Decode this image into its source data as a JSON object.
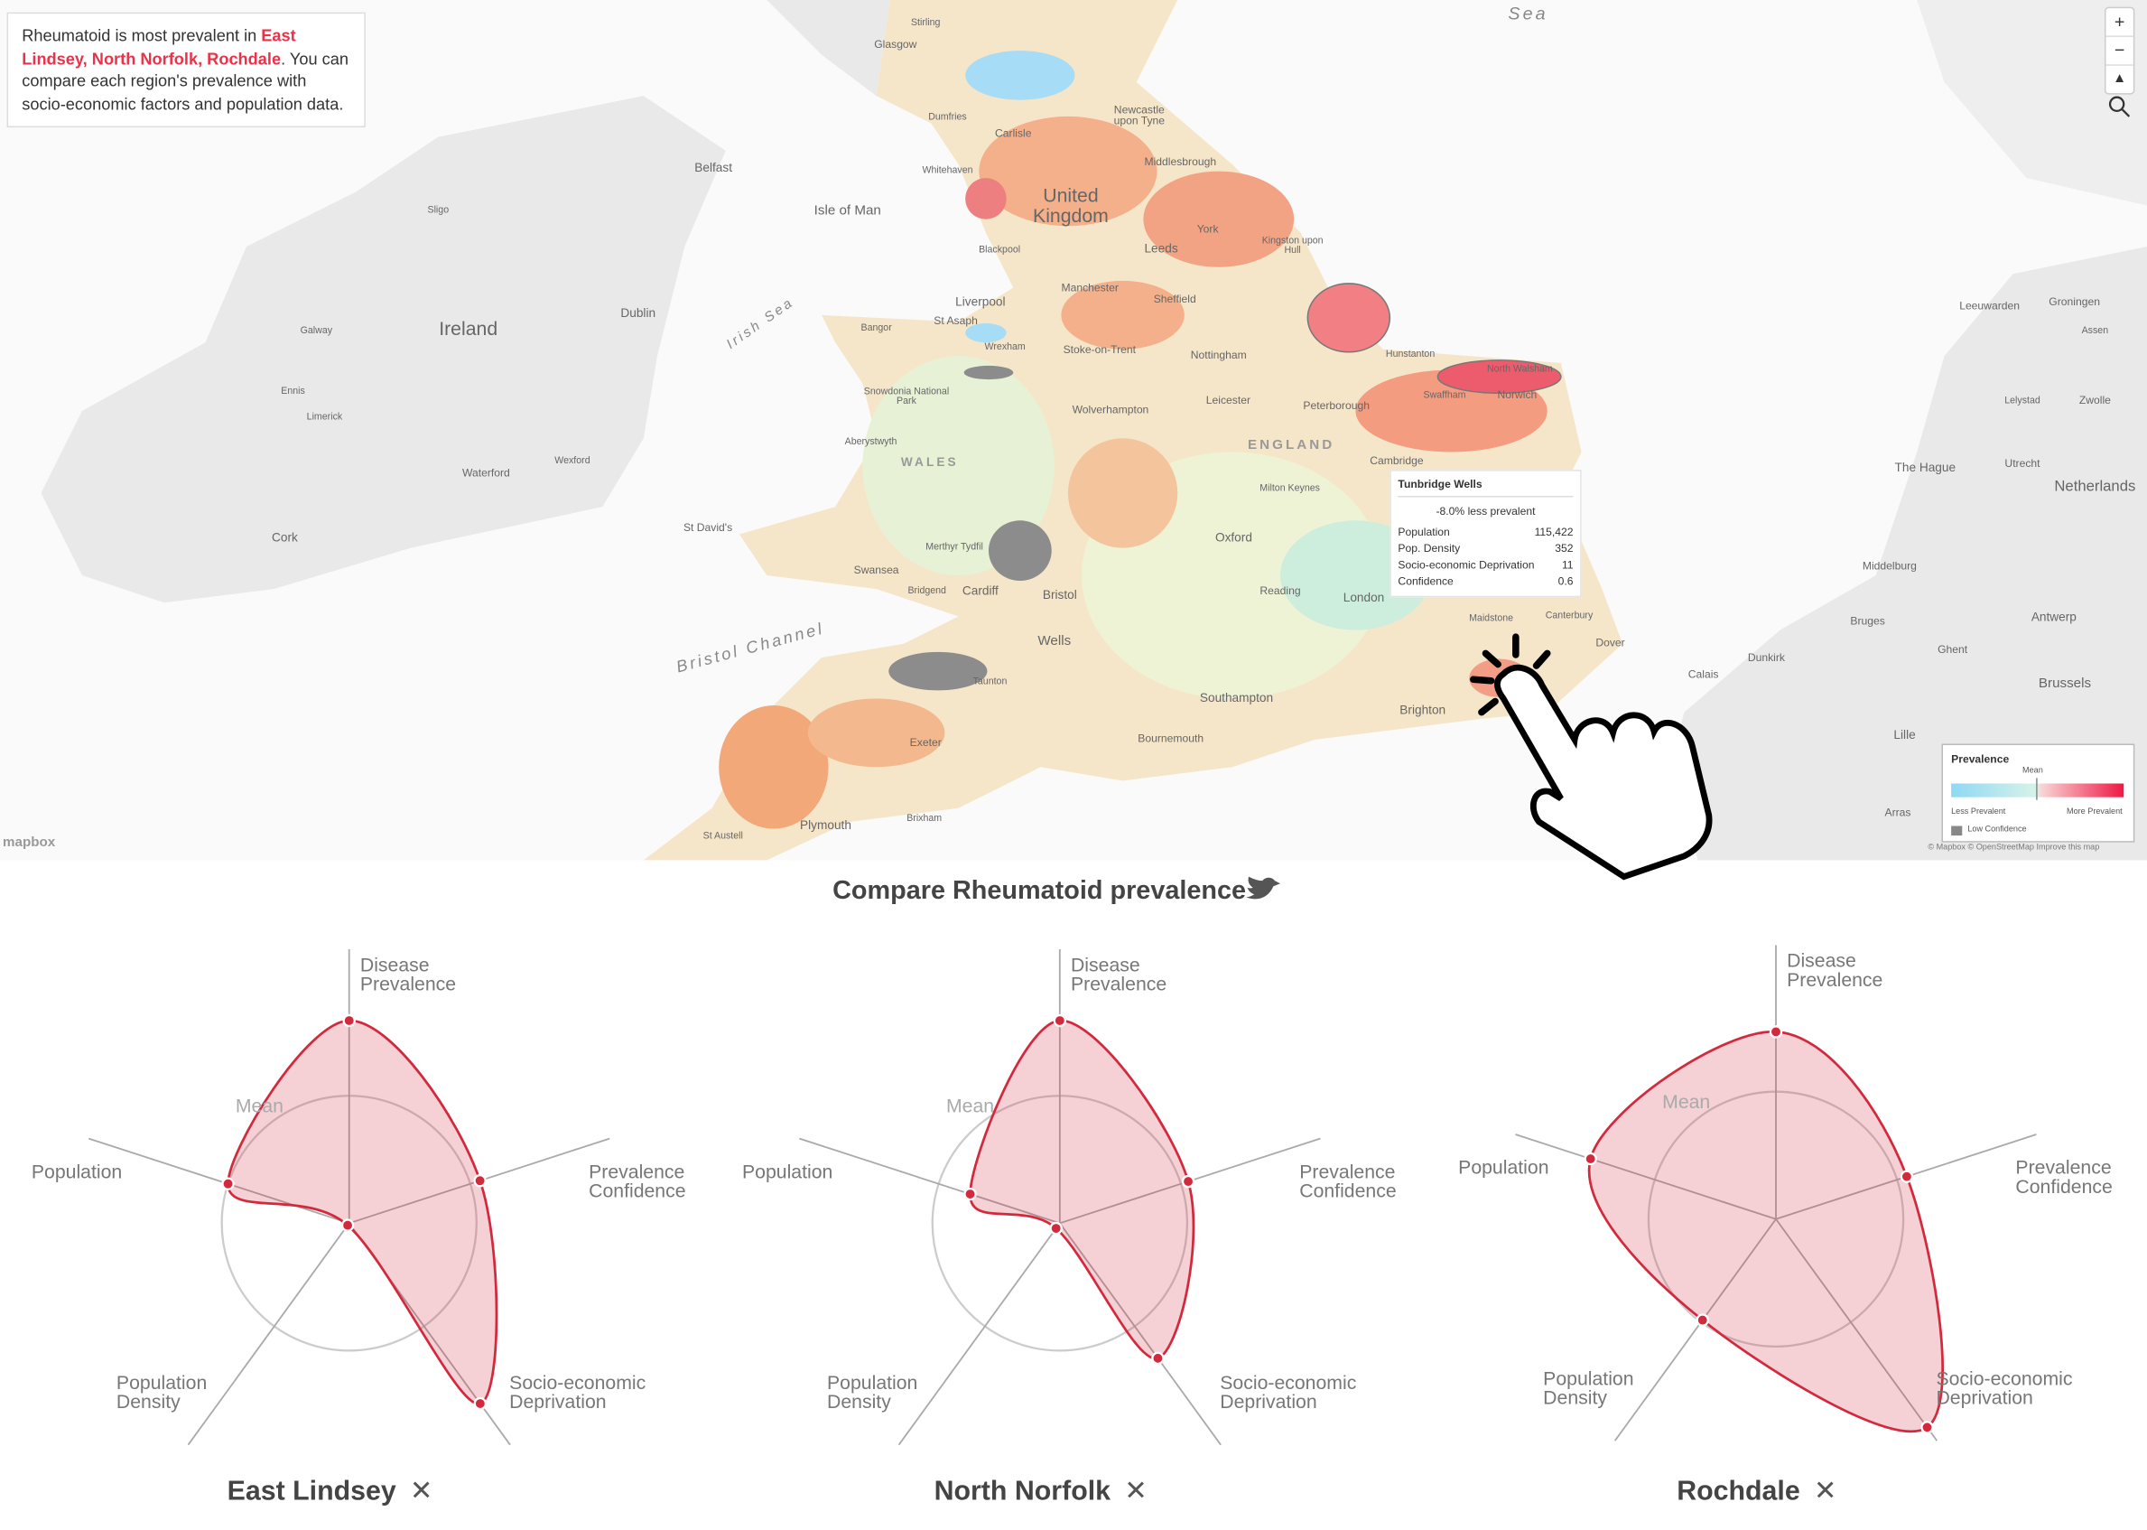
{
  "info": {
    "text_before": "Rheumatoid is most prevalent in ",
    "highlight": "East Lindsey, North Norfolk, Rochdale",
    "text_after": ". You can compare each region's prevalence with socio-economic factors and population data."
  },
  "map": {
    "labels": [
      "Sea",
      "Stirling",
      "Glasgow",
      "Dumfries",
      "Carlisle",
      "Newcastle upon Tyne",
      "Middlesbrough",
      "Whitehaven",
      "United Kingdom",
      "Isle of Man",
      "York",
      "Blackpool",
      "Leeds",
      "Kingston upon Hull",
      "Manchester",
      "Sheffield",
      "Liverpool",
      "St Asaph",
      "Bangor",
      "Wrexham",
      "Stoke-on-Trent",
      "Nottingham",
      "Hunstanton",
      "North Walsham",
      "Swaffham",
      "Norwich",
      "Snowdonia National Park",
      "Leicester",
      "Peterborough",
      "Wolverhampton",
      "Aberystwyth",
      "ENGLAND",
      "WALES",
      "Cambridge",
      "Milton Keynes",
      "St David's",
      "Oxford",
      "Merthyr Tydfil",
      "Swansea",
      "Reading",
      "Bridgend",
      "Cardiff",
      "Bristol",
      "London",
      "Maidstone",
      "Canterbury",
      "Dover",
      "Wells",
      "Taunton",
      "Southampton",
      "Brighton",
      "Bournemouth",
      "Exeter",
      "Brixham",
      "Plymouth",
      "St Austell",
      "Irish Sea",
      "Bristol Channel",
      "Ireland",
      "Dublin",
      "Belfast",
      "Galway",
      "Limerick",
      "Cork",
      "Waterford",
      "Wexford",
      "Ennis",
      "Sligo",
      "Netherlands",
      "The Hague",
      "Utrecht",
      "Groningen",
      "Leeuwarden",
      "Zwolle",
      "Lelystad",
      "Assen",
      "Middelburg",
      "Bruges",
      "Ghent",
      "Antwerp",
      "Brussels",
      "Calais",
      "Dunkirk",
      "Lille",
      "Arras"
    ],
    "logo": "mapbox",
    "attribution": "© Mapbox © OpenStreetMap Improve this map",
    "zoom_in": "+",
    "zoom_out": "−"
  },
  "tooltip": {
    "title": "Tunbridge Wells",
    "subtitle": "-8.0% less prevalent",
    "rows": [
      [
        "Population",
        "115,422"
      ],
      [
        "Pop. Density",
        "352"
      ],
      [
        "Socio-economic Deprivation",
        "11"
      ],
      [
        "Confidence",
        "0.6"
      ]
    ]
  },
  "legend": {
    "title": "Prevalence",
    "mean": "Mean",
    "low": "Less Prevalent",
    "high": "More Prevalent",
    "low_confidence": "Low Confidence"
  },
  "compare": {
    "heading": "Compare Rheumatoid prevalence"
  },
  "chart_data": [
    {
      "type": "radar",
      "title": "East Lindsey",
      "categories": [
        "Disease Prevalence",
        "Prevalence Confidence",
        "Socio-economic Deprivation",
        "Population Density",
        "Population"
      ],
      "values": [
        1.59,
        1.08,
        1.75,
        0.02,
        1.0
      ],
      "reference": {
        "label": "Mean",
        "value": 1
      },
      "rlim": [
        0,
        2.15
      ],
      "color": "#d3293d"
    },
    {
      "type": "radar",
      "title": "North Norfolk",
      "categories": [
        "Disease Prevalence",
        "Prevalence Confidence",
        "Socio-economic Deprivation",
        "Population Density",
        "Population"
      ],
      "values": [
        1.59,
        1.06,
        1.31,
        0.05,
        0.74
      ],
      "reference": {
        "label": "Mean",
        "value": 1
      },
      "rlim": [
        0,
        2.15
      ],
      "color": "#d3293d"
    },
    {
      "type": "radar",
      "title": "Rochdale",
      "categories": [
        "Disease Prevalence",
        "Prevalence Confidence",
        "Socio-economic Deprivation",
        "Population Density",
        "Population"
      ],
      "values": [
        1.47,
        1.08,
        2.02,
        0.98,
        1.53
      ],
      "reference": {
        "label": "Mean",
        "value": 1
      },
      "rlim": [
        0,
        2.15
      ],
      "color": "#d3293d"
    }
  ]
}
